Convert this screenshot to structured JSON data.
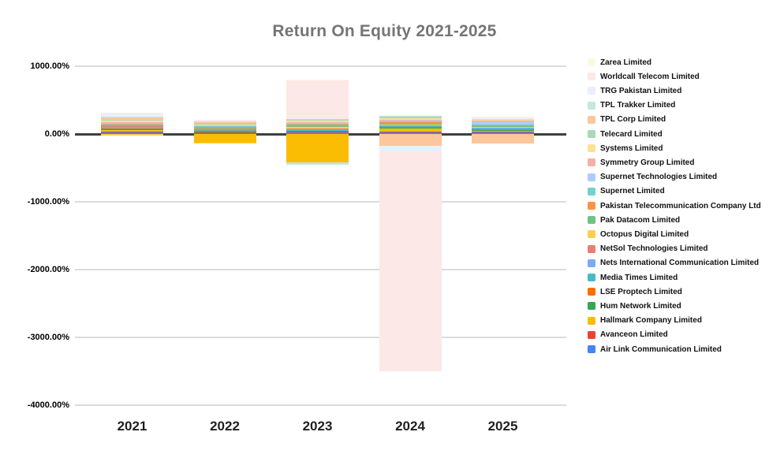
{
  "chart_data": {
    "type": "bar",
    "stacked": true,
    "title": "Return On Equity 2021-2025",
    "title_color": "#757575",
    "xlabel": "",
    "ylabel": "",
    "categories": [
      "2021",
      "2022",
      "2023",
      "2024",
      "2025"
    ],
    "y_ticks": [
      "1000.00%",
      "0.00%",
      "-1000.00%",
      "-2000.00%",
      "-3000.00%",
      "-4000.00%"
    ],
    "y_tick_values": [
      1000,
      0,
      -1000,
      -2000,
      -3000,
      -4000
    ],
    "ylim": [
      -4000,
      1000
    ],
    "value_unit": "percent",
    "grid": true,
    "legend_position": "right",
    "legend_order": "reverse-of-stack",
    "series": [
      {
        "name": "Air Link Communication Limited",
        "color": "#4285F4",
        "values": [
          24,
          15,
          20,
          22,
          30
        ]
      },
      {
        "name": "Avanceon Limited",
        "color": "#EA4335",
        "values": [
          5,
          3,
          3,
          4,
          3
        ]
      },
      {
        "name": "Hallmark Company Limited",
        "color": "#FBBC04",
        "values": [
          20,
          -125,
          -420,
          45,
          5
        ]
      },
      {
        "name": "Hum Network Limited",
        "color": "#34A853",
        "values": [
          16,
          12,
          15,
          20,
          8
        ]
      },
      {
        "name": "LSE Proptech Limited",
        "color": "#FF6D01",
        "values": [
          10,
          5,
          8,
          10,
          5
        ]
      },
      {
        "name": "Media Times Limited",
        "color": "#46BDC6",
        "values": [
          10,
          10,
          10,
          8,
          8
        ]
      },
      {
        "name": "Nets International Communication Limited",
        "color": "#7BAAF7",
        "values": [
          12,
          5,
          5,
          5,
          15
        ]
      },
      {
        "name": "NetSol Technologies Limited",
        "color": "#F07B72",
        "values": [
          6,
          4,
          4,
          5,
          8
        ]
      },
      {
        "name": "Octopus Digital Limited",
        "color": "#FCD04F",
        "values": [
          -25,
          -15,
          20,
          8,
          5
        ]
      },
      {
        "name": "Pak Datacom Limited",
        "color": "#71C287",
        "values": [
          14,
          12,
          15,
          10,
          15
        ]
      },
      {
        "name": "Pakistan Telecommunication Company Ltd",
        "color": "#FB9347",
        "values": [
          20,
          15,
          20,
          20,
          10
        ]
      },
      {
        "name": "Supernet Limited",
        "color": "#78D0CB",
        "values": [
          8,
          15,
          8,
          8,
          8
        ]
      },
      {
        "name": "Supernet Technologies Limited",
        "color": "#AECBFA",
        "values": [
          8,
          5,
          15,
          10,
          45
        ]
      },
      {
        "name": "Symmetry Group Limited",
        "color": "#F6AEA9",
        "values": [
          6,
          3,
          15,
          18,
          8
        ]
      },
      {
        "name": "Systems Limited",
        "color": "#FDE293",
        "values": [
          20,
          8,
          25,
          20,
          5
        ]
      },
      {
        "name": "Telecard Limited",
        "color": "#A8DAB5",
        "values": [
          18,
          18,
          8,
          20,
          5
        ]
      },
      {
        "name": "TPL Corp Limited",
        "color": "#FDC69C",
        "values": [
          32,
          4,
          4,
          -175,
          -140
        ]
      },
      {
        "name": "TPL Trakker Limited",
        "color": "#C2E7E3",
        "values": [
          8,
          20,
          -35,
          15,
          5
        ]
      },
      {
        "name": "TRG Pakistan Limited",
        "color": "#E8F0FE",
        "values": [
          48,
          5,
          10,
          -80,
          4
        ]
      },
      {
        "name": "Worldcall Telecom Limited",
        "color": "#FCE8E6",
        "values": [
          12,
          3,
          560,
          -3250,
          10
        ]
      },
      {
        "name": "Zarea Limited",
        "color": "#FEF7E0",
        "values": [
          0,
          0,
          5,
          8,
          15
        ]
      }
    ],
    "colors": {
      "background": "#FFFFFF",
      "gridline": "#DBDBDB",
      "zero_line": "#3E3E3E",
      "axis_label": "#000000",
      "legend_text": "#111111"
    }
  }
}
